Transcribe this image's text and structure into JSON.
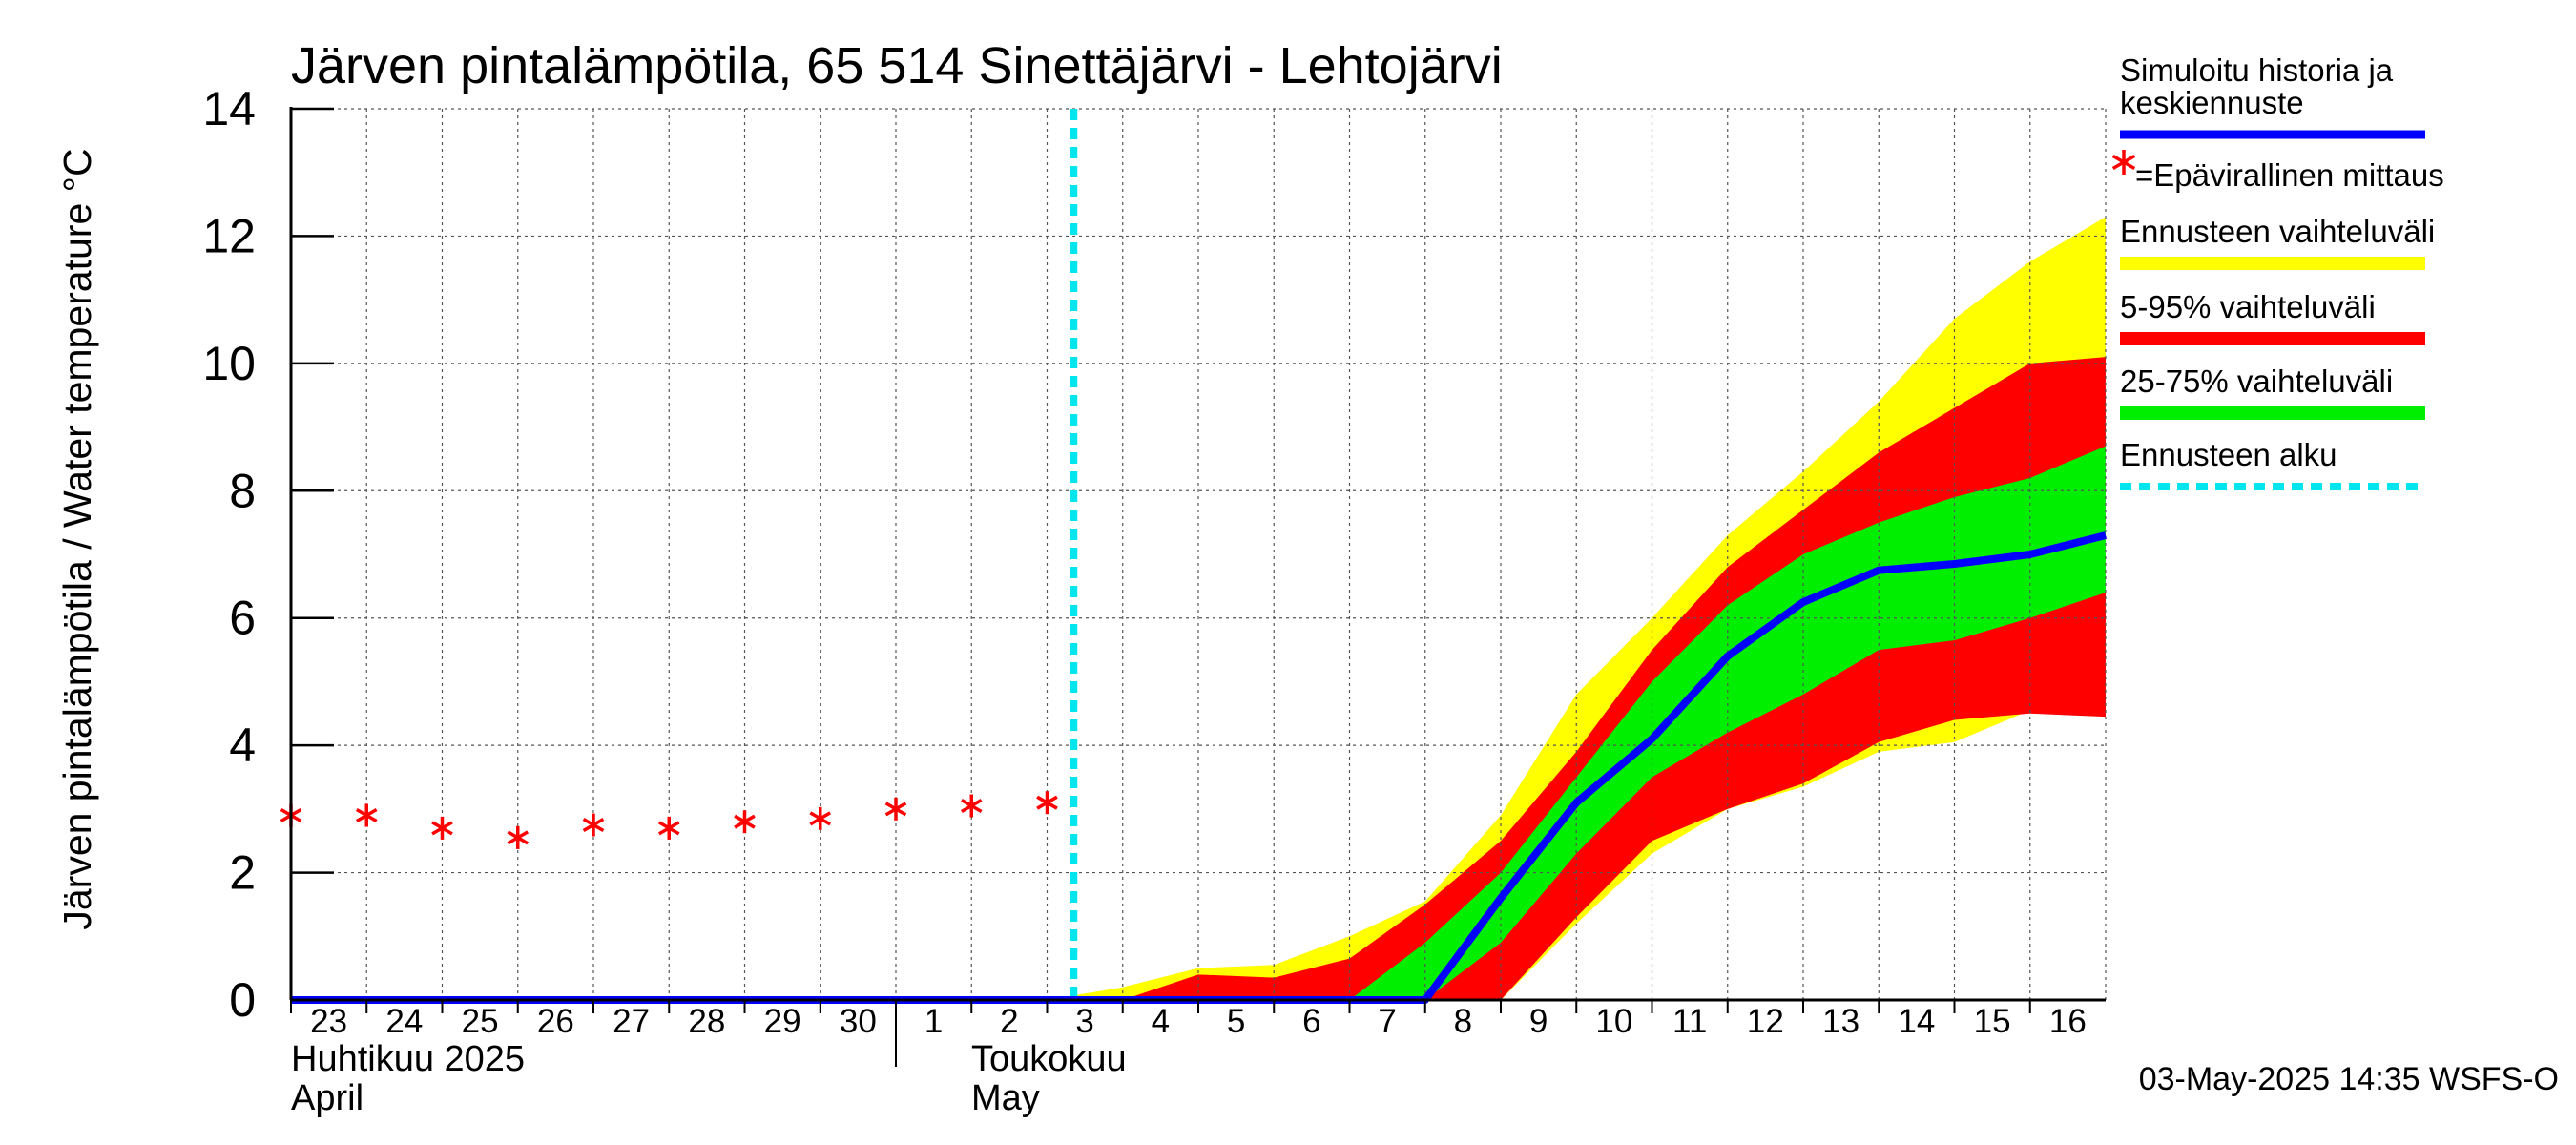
{
  "chart_data": {
    "type": "area",
    "title": "Järven pintalämpötila, 65 514 Sinettäjärvi - Lehtojärvi",
    "ylabel": "Järven pintalämpötila / Water temperature °C",
    "ylim": [
      0,
      14
    ],
    "yticks": [
      "0",
      "2",
      "4",
      "6",
      "8",
      "10",
      "12",
      "14"
    ],
    "x_range": [
      "2025-04-23",
      "2025-05-17"
    ],
    "day_labels": [
      "23",
      "24",
      "25",
      "26",
      "27",
      "28",
      "29",
      "30",
      "1",
      "2",
      "3",
      "4",
      "5",
      "6",
      "7",
      "8",
      "9",
      "10",
      "11",
      "12",
      "13",
      "14",
      "15",
      "16"
    ],
    "month_labels": [
      {
        "fi": "Huhtikuu  2025",
        "en": "April"
      },
      {
        "fi": "Toukokuu",
        "en": "May"
      }
    ],
    "forecast_start": "2025-05-03",
    "footer": "03-May-2025 14:35 WSFS-O",
    "grid": true,
    "legend_position": "right",
    "legend": {
      "sim_label_line1": "Simuloitu historia ja",
      "sim_label_line2": "keskiennuste",
      "obs_label": "=Epävirallinen mittaus",
      "range_label": "Ennusteen vaihteluväli",
      "p595_label": "5-95% vaihteluväli",
      "p2575_label": "25-75% vaihteluväli",
      "start_label": "Ennusteen alku"
    },
    "colors": {
      "sim": "#0000ff",
      "obs": "#ff0000",
      "range": "#ffff00",
      "p595": "#ff0000",
      "p2575": "#00ee00",
      "start": "#00e5ee"
    },
    "observations": {
      "x": [
        "2025-04-23",
        "2025-04-24",
        "2025-04-25",
        "2025-04-26",
        "2025-04-27",
        "2025-04-28",
        "2025-04-29",
        "2025-04-30",
        "2025-05-01",
        "2025-05-02",
        "2025-05-03"
      ],
      "y": [
        2.9,
        2.9,
        2.7,
        2.55,
        2.75,
        2.7,
        2.8,
        2.85,
        3.0,
        3.05,
        3.1
      ]
    },
    "forecast": {
      "x": [
        "2025-05-03",
        "2025-05-04",
        "2025-05-05",
        "2025-05-06",
        "2025-05-07",
        "2025-05-08",
        "2025-05-09",
        "2025-05-10",
        "2025-05-11",
        "2025-05-12",
        "2025-05-13",
        "2025-05-14",
        "2025-05-15",
        "2025-05-16",
        "2025-05-17"
      ],
      "range_max": [
        0,
        0.2,
        0.5,
        0.55,
        1.0,
        1.55,
        2.9,
        4.8,
        6.0,
        7.3,
        8.3,
        9.4,
        10.7,
        11.6,
        12.3
      ],
      "p95": [
        0,
        0,
        0.4,
        0.35,
        0.65,
        1.5,
        2.5,
        3.9,
        5.5,
        6.8,
        7.7,
        8.6,
        9.3,
        10.0,
        10.1
      ],
      "p75": [
        0,
        0,
        0,
        0,
        0,
        0.9,
        2.0,
        3.5,
        5.0,
        6.2,
        7.0,
        7.5,
        7.9,
        8.2,
        8.7
      ],
      "median": [
        0,
        0,
        0,
        0,
        0,
        0,
        1.6,
        3.1,
        4.1,
        5.4,
        6.25,
        6.75,
        6.85,
        7.0,
        7.3
      ],
      "p25": [
        0,
        0,
        0,
        0,
        0,
        0,
        0.9,
        2.3,
        3.5,
        4.2,
        4.8,
        5.5,
        5.65,
        6.0,
        6.4
      ],
      "p05": [
        0,
        0,
        0,
        0,
        0,
        0,
        0,
        1.3,
        2.5,
        3.0,
        3.4,
        4.05,
        4.4,
        4.5,
        4.45
      ],
      "range_min": [
        0,
        0,
        0,
        0,
        0,
        0,
        0,
        1.2,
        2.3,
        3.0,
        3.35,
        3.9,
        4.05,
        4.55,
        4.45
      ]
    },
    "simulated_history": {
      "x": [
        "2025-04-23",
        "2025-05-03"
      ],
      "y": [
        0,
        0
      ]
    }
  }
}
